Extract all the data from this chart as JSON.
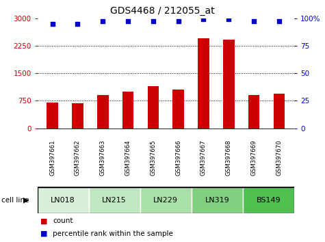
{
  "title": "GDS4468 / 212055_at",
  "samples": [
    "GSM397661",
    "GSM397662",
    "GSM397663",
    "GSM397664",
    "GSM397665",
    "GSM397666",
    "GSM397667",
    "GSM397668",
    "GSM397669",
    "GSM397670"
  ],
  "counts": [
    700,
    680,
    900,
    1000,
    1150,
    1050,
    2450,
    2420,
    900,
    950
  ],
  "percentile_ranks": [
    95,
    95,
    97,
    97,
    97,
    97,
    99,
    99,
    97,
    97
  ],
  "bar_color": "#cc0000",
  "dot_color": "#0000cc",
  "ylim_left": [
    0,
    3000
  ],
  "ylim_right": [
    0,
    100
  ],
  "yticks_left": [
    0,
    750,
    1500,
    2250,
    3000
  ],
  "yticks_right": [
    0,
    25,
    50,
    75,
    100
  ],
  "left_tick_color": "#cc0000",
  "right_tick_color": "#0000cc",
  "label_area_color": "#c8c8c8",
  "cell_line_groups": [
    {
      "label": "LN018",
      "start": 0,
      "end": 2,
      "color": "#d8f0d8"
    },
    {
      "label": "LN215",
      "start": 2,
      "end": 4,
      "color": "#c0e8c0"
    },
    {
      "label": "LN229",
      "start": 4,
      "end": 6,
      "color": "#a8e0a8"
    },
    {
      "label": "LN319",
      "start": 6,
      "end": 8,
      "color": "#80d080"
    },
    {
      "label": "BS149",
      "start": 8,
      "end": 10,
      "color": "#50c050"
    }
  ],
  "legend_items": [
    {
      "color": "#cc0000",
      "label": "count"
    },
    {
      "color": "#0000cc",
      "label": "percentile rank within the sample"
    }
  ],
  "cell_line_label": "cell line",
  "figsize": [
    4.75,
    3.54
  ],
  "dpi": 100
}
